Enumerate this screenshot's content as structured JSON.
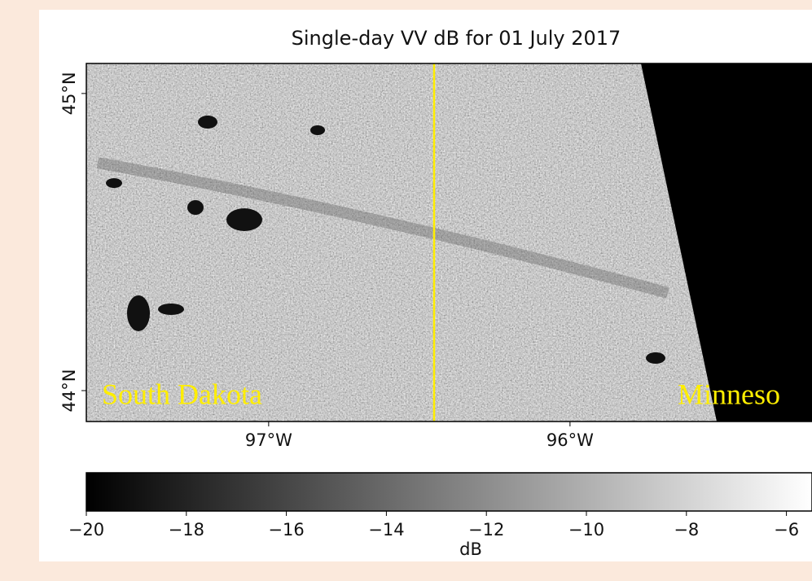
{
  "chart_data": {
    "type": "image",
    "title": "Single-day VV dB for 01 July 2017",
    "xlim": [
      -97.605,
      -95.197
    ],
    "ylim": [
      43.896,
      45.101
    ],
    "xticks": [
      {
        "value": -97,
        "label": "97°W"
      },
      {
        "value": -96,
        "label": "96°W"
      }
    ],
    "yticks": [
      {
        "value": 44,
        "label": "44°N"
      },
      {
        "value": 45,
        "label": "45°N"
      }
    ],
    "annotations": [
      "South Dakota",
      "Minneso"
    ],
    "colorbar": {
      "label": "dB",
      "lim": [
        -20,
        -5
      ],
      "ticks": [
        {
          "value": -20,
          "label": "−20"
        },
        {
          "value": -18,
          "label": "−18"
        },
        {
          "value": -16,
          "label": "−16"
        },
        {
          "value": -14,
          "label": "−14"
        },
        {
          "value": -12,
          "label": "−12"
        },
        {
          "value": -10,
          "label": "−10"
        },
        {
          "value": -8,
          "label": "−8"
        },
        {
          "value": -6,
          "label": "−6"
        }
      ]
    }
  }
}
